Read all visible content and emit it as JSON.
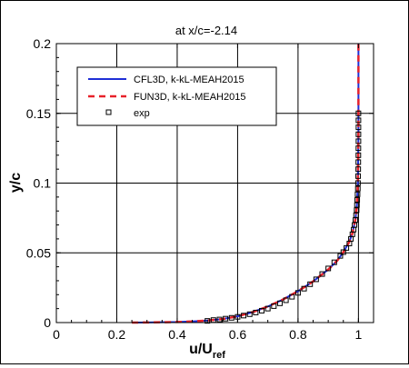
{
  "chart_data": {
    "type": "line",
    "title": "at x/c=-2.14",
    "xlabel": "u/U",
    "xlabel_sub": "ref",
    "ylabel": "y/c",
    "xlim": [
      0,
      1.05
    ],
    "ylim": [
      0,
      0.2
    ],
    "xticks": [
      0,
      0.2,
      0.4,
      0.6,
      0.8,
      1
    ],
    "xtick_labels": [
      "0",
      "0.2",
      "0.4",
      "0.6",
      "0.8",
      "1"
    ],
    "yticks": [
      0,
      0.05,
      0.1,
      0.15,
      0.2
    ],
    "ytick_labels": [
      "0",
      "0.05",
      "0.1",
      "0.15",
      "0.2"
    ],
    "grid": true,
    "legend_position": "top-left",
    "series": [
      {
        "name": "CFL3D, k-kL-MEAH2015",
        "style": "solid-line",
        "color": "#1f2fd6",
        "points": [
          [
            0.25,
            0.0
          ],
          [
            0.3,
            8e-05
          ],
          [
            0.4,
            0.0004
          ],
          [
            0.45,
            0.0008
          ],
          [
            0.5,
            0.0015
          ],
          [
            0.55,
            0.0025
          ],
          [
            0.6,
            0.0045
          ],
          [
            0.65,
            0.0075
          ],
          [
            0.7,
            0.0115
          ],
          [
            0.75,
            0.0165
          ],
          [
            0.8,
            0.0225
          ],
          [
            0.85,
            0.0295
          ],
          [
            0.9,
            0.038
          ],
          [
            0.93,
            0.0445
          ],
          [
            0.95,
            0.0505
          ],
          [
            0.97,
            0.058
          ],
          [
            0.98,
            0.064
          ],
          [
            0.99,
            0.074
          ],
          [
            0.995,
            0.085
          ],
          [
            0.998,
            0.1
          ],
          [
            0.999,
            0.115
          ],
          [
            1.0,
            0.135
          ],
          [
            1.0,
            0.2
          ]
        ]
      },
      {
        "name": "FUN3D, k-kL-MEAH2015",
        "style": "dashed-line",
        "color": "#e8222a",
        "points": [
          [
            0.25,
            0.0
          ],
          [
            0.3,
            8e-05
          ],
          [
            0.4,
            0.0004
          ],
          [
            0.45,
            0.0008
          ],
          [
            0.5,
            0.0015
          ],
          [
            0.55,
            0.0025
          ],
          [
            0.6,
            0.0045
          ],
          [
            0.65,
            0.0075
          ],
          [
            0.7,
            0.0115
          ],
          [
            0.75,
            0.0165
          ],
          [
            0.8,
            0.0225
          ],
          [
            0.85,
            0.0295
          ],
          [
            0.9,
            0.038
          ],
          [
            0.93,
            0.0445
          ],
          [
            0.95,
            0.0505
          ],
          [
            0.97,
            0.058
          ],
          [
            0.98,
            0.064
          ],
          [
            0.99,
            0.074
          ],
          [
            0.995,
            0.085
          ],
          [
            0.998,
            0.1
          ],
          [
            0.999,
            0.115
          ],
          [
            1.0,
            0.135
          ],
          [
            1.0,
            0.2
          ]
        ]
      },
      {
        "name": "exp",
        "style": "open-square",
        "color": "#000000",
        "points": [
          [
            0.5,
            0.0012
          ],
          [
            0.52,
            0.0018
          ],
          [
            0.54,
            0.0022
          ],
          [
            0.56,
            0.0028
          ],
          [
            0.58,
            0.0034
          ],
          [
            0.6,
            0.0041
          ],
          [
            0.62,
            0.005
          ],
          [
            0.64,
            0.006
          ],
          [
            0.66,
            0.0072
          ],
          [
            0.68,
            0.0085
          ],
          [
            0.7,
            0.01
          ],
          [
            0.72,
            0.0118
          ],
          [
            0.74,
            0.0138
          ],
          [
            0.76,
            0.016
          ],
          [
            0.78,
            0.0185
          ],
          [
            0.8,
            0.0213
          ],
          [
            0.82,
            0.0243
          ],
          [
            0.84,
            0.0275
          ],
          [
            0.86,
            0.031
          ],
          [
            0.88,
            0.0348
          ],
          [
            0.9,
            0.0388
          ],
          [
            0.92,
            0.0432
          ],
          [
            0.94,
            0.0478
          ],
          [
            0.95,
            0.0505
          ],
          [
            0.96,
            0.0535
          ],
          [
            0.97,
            0.0567
          ],
          [
            0.975,
            0.06
          ],
          [
            0.98,
            0.0633
          ],
          [
            0.984,
            0.0666
          ],
          [
            0.987,
            0.07
          ],
          [
            0.99,
            0.0735
          ],
          [
            0.992,
            0.077
          ],
          [
            0.994,
            0.0806
          ],
          [
            0.995,
            0.0843
          ],
          [
            0.996,
            0.088
          ],
          [
            0.997,
            0.092
          ],
          [
            0.998,
            0.096
          ],
          [
            0.9985,
            0.1
          ],
          [
            0.999,
            0.105
          ],
          [
            0.9993,
            0.11
          ],
          [
            0.9995,
            0.115
          ],
          [
            0.9997,
            0.12
          ],
          [
            0.9998,
            0.125
          ],
          [
            1.0,
            0.13
          ],
          [
            1.0,
            0.135
          ],
          [
            1.0,
            0.14
          ],
          [
            1.0,
            0.145
          ],
          [
            1.0,
            0.15
          ]
        ]
      }
    ]
  }
}
